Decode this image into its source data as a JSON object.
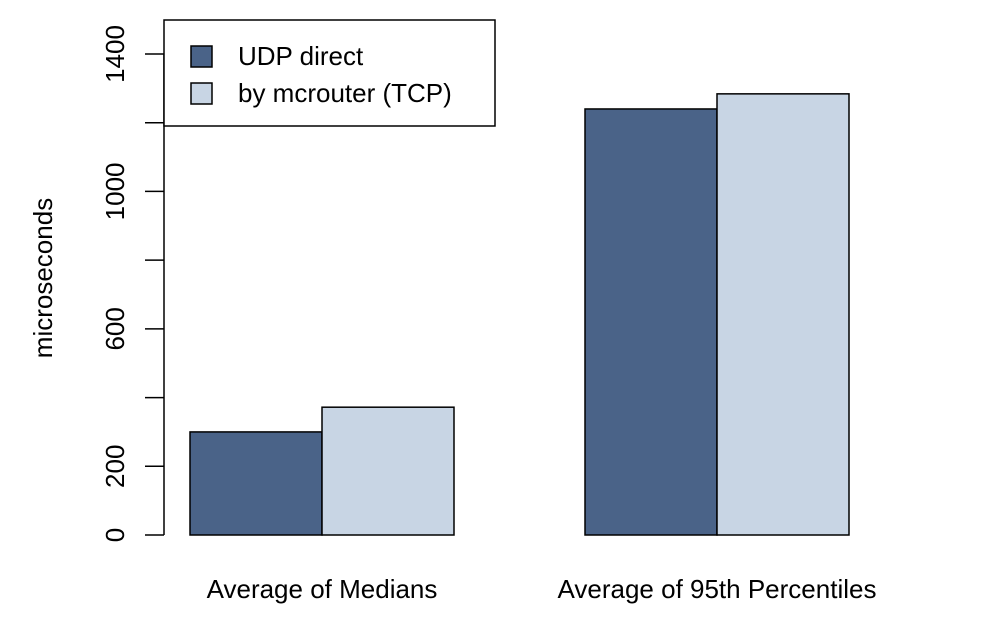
{
  "chart_data": {
    "type": "bar",
    "ylabel": "microseconds",
    "ylim": [
      0,
      1400
    ],
    "yticks": [
      0,
      200,
      400,
      600,
      800,
      1000,
      1200,
      1400
    ],
    "ytick_labels": [
      "0",
      "200",
      "",
      "600",
      "",
      "1000",
      "",
      "1400"
    ],
    "categories": [
      "Average of Medians",
      "Average of 95th Percentiles"
    ],
    "series": [
      {
        "name": "UDP direct",
        "color": "#4a6388",
        "values": [
          300,
          1240
        ]
      },
      {
        "name": "by mcrouter (TCP)",
        "color": "#c8d5e4",
        "values": [
          372,
          1284
        ]
      }
    ],
    "legend": "top-left",
    "grid": false
  }
}
